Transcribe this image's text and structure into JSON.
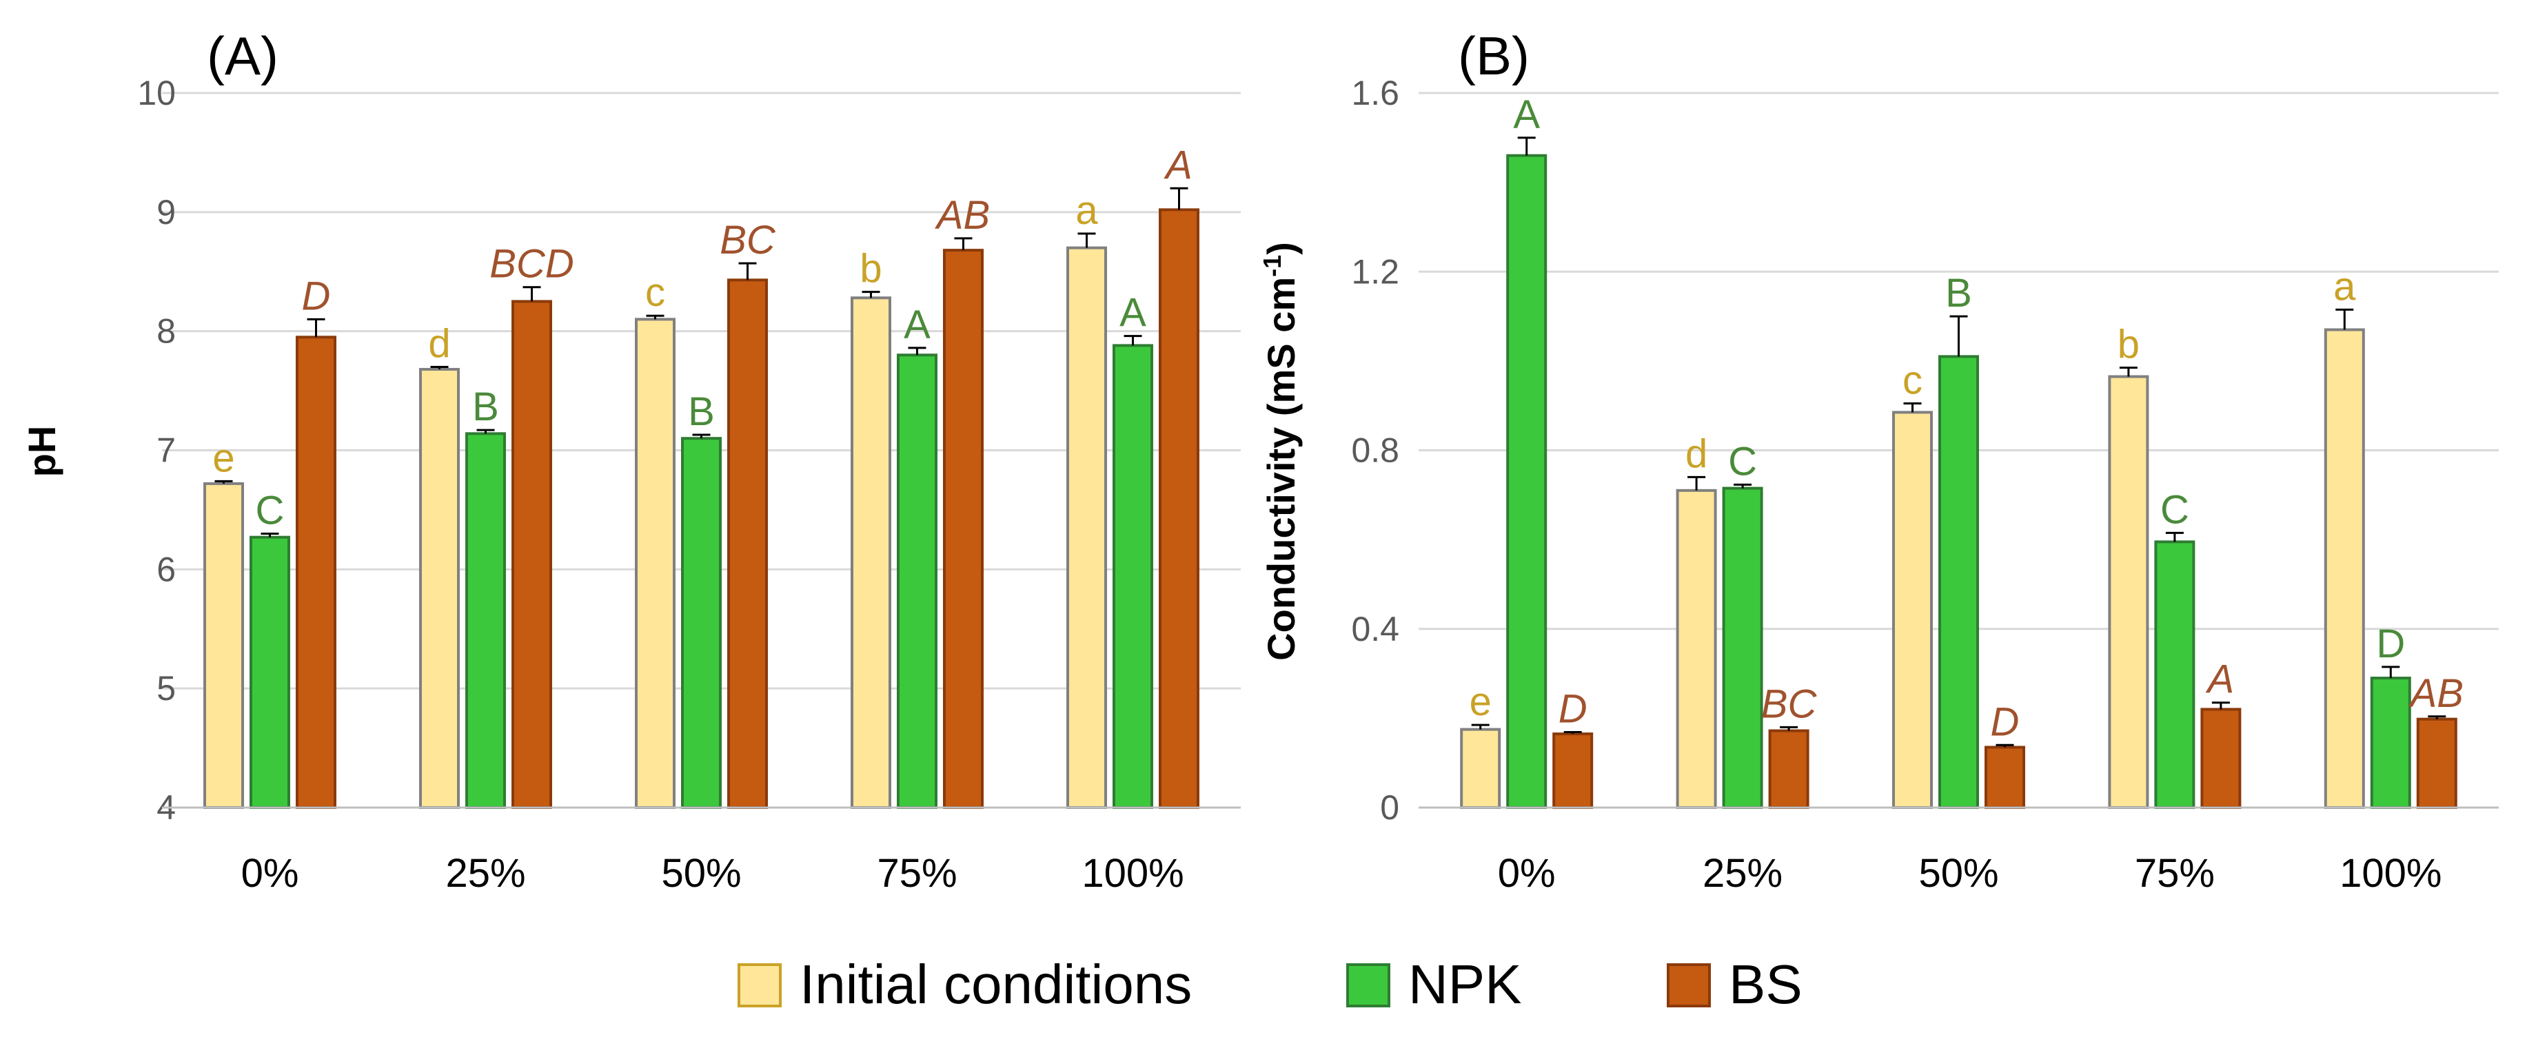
{
  "chart_data": [
    {
      "type": "bar",
      "panel": "(A)",
      "title": "",
      "xlabel": "",
      "ylabel": "pH",
      "ylim": [
        4,
        10
      ],
      "yticks": [
        4,
        5,
        6,
        7,
        8,
        9,
        10
      ],
      "ytick_labels": [
        "4",
        "5",
        "6",
        "7",
        "8",
        "9",
        "10"
      ],
      "grid": true,
      "categories": [
        "0%",
        "25%",
        "50%",
        "75%",
        "100%"
      ],
      "series": [
        {
          "name": "Initial conditions",
          "color": "#FFE699",
          "edge": "#808080",
          "values": [
            6.72,
            7.68,
            8.1,
            8.28,
            8.7
          ],
          "errors": [
            0.02,
            0.02,
            0.03,
            0.05,
            0.12
          ],
          "letters": [
            "e",
            "d",
            "c",
            "b",
            "a"
          ],
          "letter_color": "#C9A227",
          "italic": false
        },
        {
          "name": "NPK",
          "color": "#3CC83C",
          "edge": "#2E7D32",
          "values": [
            6.27,
            7.14,
            7.1,
            7.8,
            7.88
          ],
          "errors": [
            0.03,
            0.03,
            0.03,
            0.06,
            0.08
          ],
          "letters": [
            "C",
            "B",
            "B",
            "A",
            "A"
          ],
          "letter_color": "#4A8A3A",
          "italic": false
        },
        {
          "name": "BS",
          "color": "#C55A11",
          "edge": "#8B3A0A",
          "values": [
            7.95,
            8.25,
            8.43,
            8.68,
            9.02
          ],
          "errors": [
            0.15,
            0.12,
            0.14,
            0.1,
            0.18
          ],
          "letters": [
            "D",
            "BCD",
            "BC",
            "AB",
            "A"
          ],
          "letter_color": "#A0522D",
          "italic": true
        }
      ]
    },
    {
      "type": "bar",
      "panel": "(B)",
      "title": "",
      "xlabel": "",
      "ylabel": "Conductivity (mS cm",
      "ylabel_sup": "-1",
      "ylabel_tail": ")",
      "ylim": [
        0,
        1.6
      ],
      "yticks": [
        0,
        0.4,
        0.8,
        1.2,
        1.6
      ],
      "ytick_labels": [
        "0",
        "0.4",
        "0.8",
        "1.2",
        "1.6"
      ],
      "grid": true,
      "categories": [
        "0%",
        "25%",
        "50%",
        "75%",
        "100%"
      ],
      "series": [
        {
          "name": "Initial conditions",
          "color": "#FFE699",
          "edge": "#808080",
          "values": [
            0.175,
            0.71,
            0.885,
            0.965,
            1.07
          ],
          "errors": [
            0.01,
            0.03,
            0.02,
            0.02,
            0.045
          ],
          "letters": [
            "e",
            "d",
            "c",
            "b",
            "a"
          ],
          "letter_color": "#C9A227",
          "italic": false
        },
        {
          "name": "NPK",
          "color": "#3CC83C",
          "edge": "#2E7D32",
          "values": [
            1.46,
            0.715,
            1.01,
            0.595,
            0.29
          ],
          "errors": [
            0.04,
            0.008,
            0.09,
            0.02,
            0.025
          ],
          "letters": [
            "A",
            "C",
            "B",
            "C",
            "D"
          ],
          "letter_color": "#4A8A3A",
          "italic": false
        },
        {
          "name": "BS",
          "color": "#C55A11",
          "edge": "#8B3A0A",
          "values": [
            0.165,
            0.172,
            0.135,
            0.22,
            0.198
          ],
          "errors": [
            0.004,
            0.008,
            0.005,
            0.015,
            0.006
          ],
          "letters": [
            "D",
            "BC",
            "D",
            "A",
            "AB"
          ],
          "letter_color": "#A0522D",
          "italic": true
        }
      ]
    }
  ],
  "legend": {
    "position": "bottom-center",
    "items": [
      {
        "label": "Initial conditions",
        "color": "#FFE699",
        "edge": "#C9A227"
      },
      {
        "label": "NPK",
        "color": "#3CC83C",
        "edge": "#2E7D32"
      },
      {
        "label": "BS",
        "color": "#C55A11",
        "edge": "#8B3A0A"
      }
    ]
  }
}
